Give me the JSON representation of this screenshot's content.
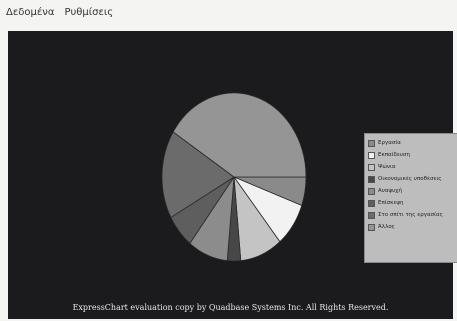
{
  "menu": {
    "items": [
      {
        "label": "Δεδομένα"
      },
      {
        "label": "Ρυθμίσεις"
      }
    ]
  },
  "footer": {
    "text": "ExpressChart evaluation copy by Quadbase Systems Inc. All Rights Reserved."
  },
  "colors": {
    "background": "#1b1b1d",
    "legend_bg": "#bdbdbd"
  },
  "chart_data": {
    "type": "pie",
    "title": "",
    "start_angle_deg": 0,
    "direction": "clockwise",
    "legend_position": "right",
    "slices": [
      {
        "label": "Εργασία",
        "value": 5.5,
        "color": "#8a8a8a"
      },
      {
        "label": "Εκπαίδευση",
        "value": 8.5,
        "color": "#f2f2f2"
      },
      {
        "label": "Ψώνια",
        "value": 9.5,
        "color": "#c4c4c4"
      },
      {
        "label": "Οικονομικές υποθέσεις",
        "value": 3.0,
        "color": "#474747"
      },
      {
        "label": "Αναψυχή",
        "value": 9.0,
        "color": "#8c8c8c"
      },
      {
        "label": "Επίσκεψη",
        "value": 6.5,
        "color": "#5e5e5e"
      },
      {
        "label": "Στο σπίτι της εργασίας",
        "value": 17.0,
        "color": "#6b6b6b"
      },
      {
        "label": "Άλλος",
        "value": 41.0,
        "color": "#959595"
      }
    ]
  }
}
